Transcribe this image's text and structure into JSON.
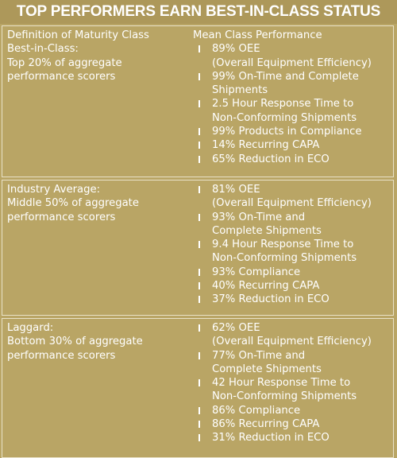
{
  "header": {
    "title": "TOP PERFORMERS EARN BEST-IN-CLASS STATUS",
    "left_heading": "Definition of Maturity Class",
    "right_heading": "Mean Class Performance"
  },
  "rows": [
    {
      "class_lines": [
        "Best-in-Class:",
        "Top 20% of aggregate",
        "performance scorers"
      ],
      "items": [
        [
          "89% OEE",
          "(Overall Equipment Efficiency)"
        ],
        [
          "99% On-Time and Complete",
          "Shipments"
        ],
        [
          "2.5 Hour Response Time to",
          "Non-Conforming Shipments"
        ],
        [
          "99% Products in Compliance"
        ],
        [
          "14% Recurring CAPA"
        ],
        [
          "65% Reduction in ECO"
        ]
      ]
    },
    {
      "class_lines": [
        "Industry Average:",
        "Middle 50% of aggregate",
        "performance scorers"
      ],
      "items": [
        [
          "81% OEE",
          "(Overall Equipment Efficiency)"
        ],
        [
          "93% On-Time and",
          "Complete Shipments"
        ],
        [
          "9.4 Hour Response Time to",
          "Non-Conforming Shipments"
        ],
        [
          "93% Compliance"
        ],
        [
          "40% Recurring CAPA"
        ],
        [
          "37% Reduction in ECO"
        ]
      ]
    },
    {
      "class_lines": [
        "Laggard:",
        "Bottom 30% of aggregate",
        "performance scorers"
      ],
      "items": [
        [
          "62% OEE",
          "(Overall Equipment Efficiency)"
        ],
        [
          "77% On-Time and",
          "Complete Shipments"
        ],
        [
          "42 Hour Response Time to",
          "Non-Conforming Shipments"
        ],
        [
          "86% Compliance"
        ],
        [
          "86% Recurring CAPA"
        ],
        [
          "31% Reduction in ECO"
        ]
      ]
    }
  ]
}
